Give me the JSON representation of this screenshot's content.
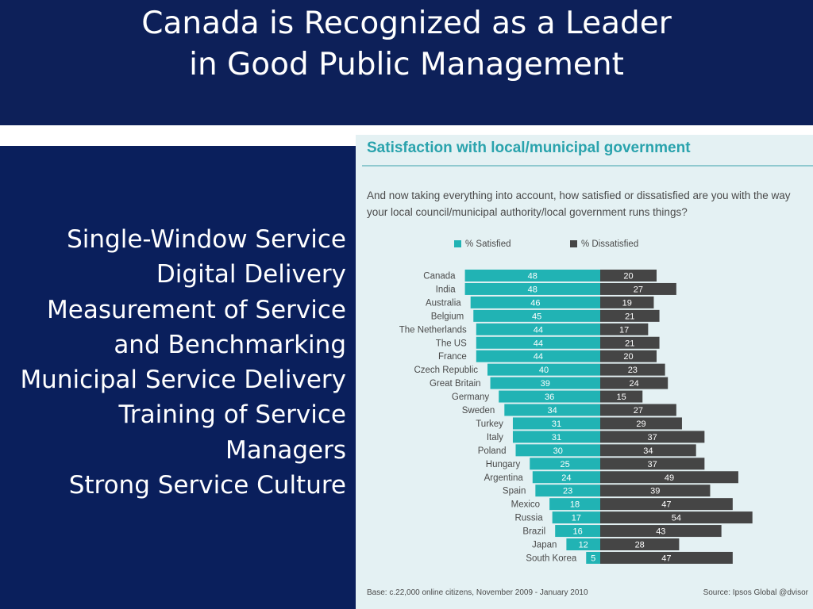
{
  "slide": {
    "title_line1": "Canada is Recognized as a Leader",
    "title_line2": "in Good Public Management",
    "bullets": [
      "Single-Window Service",
      "Digital Delivery",
      "Measurement of Service and Benchmarking",
      "Municipal Service Delivery",
      "Training of Service Managers",
      "Strong Service Culture"
    ]
  },
  "colors": {
    "satisfied": "#21b3b4",
    "dissatisfied": "#454545",
    "background": "#0a1f5c",
    "chart_background": "#e4f1f3"
  },
  "chart_data": {
    "type": "bar",
    "orientation": "horizontal-diverging",
    "title": "Satisfaction with local/municipal government",
    "subtitle": "And now taking everything into account, how satisfied or dissatisfied are you with the way your local council/municipal authority/local government runs things?",
    "legend_position": "top",
    "grid": false,
    "categories": [
      "Canada",
      "India",
      "Australia",
      "Belgium",
      "The Netherlands",
      "The US",
      "France",
      "Czech Republic",
      "Great Britain",
      "Germany",
      "Sweden",
      "Turkey",
      "Italy",
      "Poland",
      "Hungary",
      "Argentina",
      "Spain",
      "Mexico",
      "Russia",
      "Brazil",
      "Japan",
      "South Korea"
    ],
    "series": [
      {
        "name": "% Satisfied",
        "values": [
          48,
          48,
          46,
          45,
          44,
          44,
          44,
          40,
          39,
          36,
          34,
          31,
          31,
          30,
          25,
          24,
          23,
          18,
          17,
          16,
          12,
          5
        ]
      },
      {
        "name": "% Dissatisfied",
        "values": [
          20,
          27,
          19,
          21,
          17,
          21,
          20,
          23,
          24,
          15,
          27,
          29,
          37,
          34,
          37,
          49,
          39,
          47,
          54,
          43,
          28,
          47
        ]
      }
    ],
    "base": "Base: c.22,000 online citizens, November 2009 - January 2010",
    "source": "Source: Ipsos Global @dvisor"
  }
}
